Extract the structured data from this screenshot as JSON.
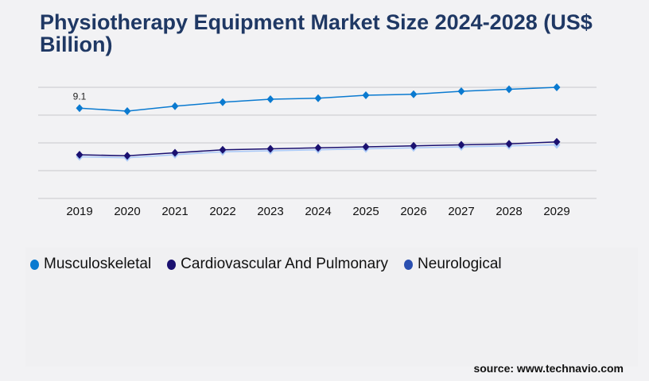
{
  "title": "Physiotherapy Equipment Market Size 2024-2028 (US$ Billion)",
  "source": "source: www.technavio.com",
  "chart_data": {
    "type": "line",
    "title": "Physiotherapy Equipment Market Size 2024-2028 (US$ Billion)",
    "x": [
      "2019",
      "2020",
      "2021",
      "2022",
      "2023",
      "2024",
      "2025",
      "2026",
      "2027",
      "2028",
      "2029"
    ],
    "ylim": [
      0,
      11.2
    ],
    "grid": true,
    "legend_position": "bottom",
    "series": [
      {
        "name": "Musculoskeletal",
        "color": "#0a7ad0",
        "legend_color": "#0a7ad0",
        "values": [
          9.1,
          8.8,
          9.3,
          9.7,
          10.0,
          10.1,
          10.4,
          10.5,
          10.8,
          11.0,
          11.2
        ]
      },
      {
        "name": "Cardiovascular And Pulmonary",
        "color": "#1a1070",
        "legend_color": "#1a1070",
        "values": [
          4.4,
          4.3,
          4.6,
          4.9,
          5.0,
          5.1,
          5.2,
          5.3,
          5.4,
          5.5,
          5.7
        ]
      },
      {
        "name": "Neurological",
        "color": "#a9c9f8",
        "legend_color": "#2a4fb0",
        "values": [
          4.2,
          4.1,
          4.4,
          4.7,
          4.8,
          4.9,
          5.0,
          5.1,
          5.2,
          5.3,
          5.4
        ]
      }
    ],
    "data_labels": [
      {
        "series": 0,
        "index": 0,
        "text": "9.1"
      }
    ]
  }
}
